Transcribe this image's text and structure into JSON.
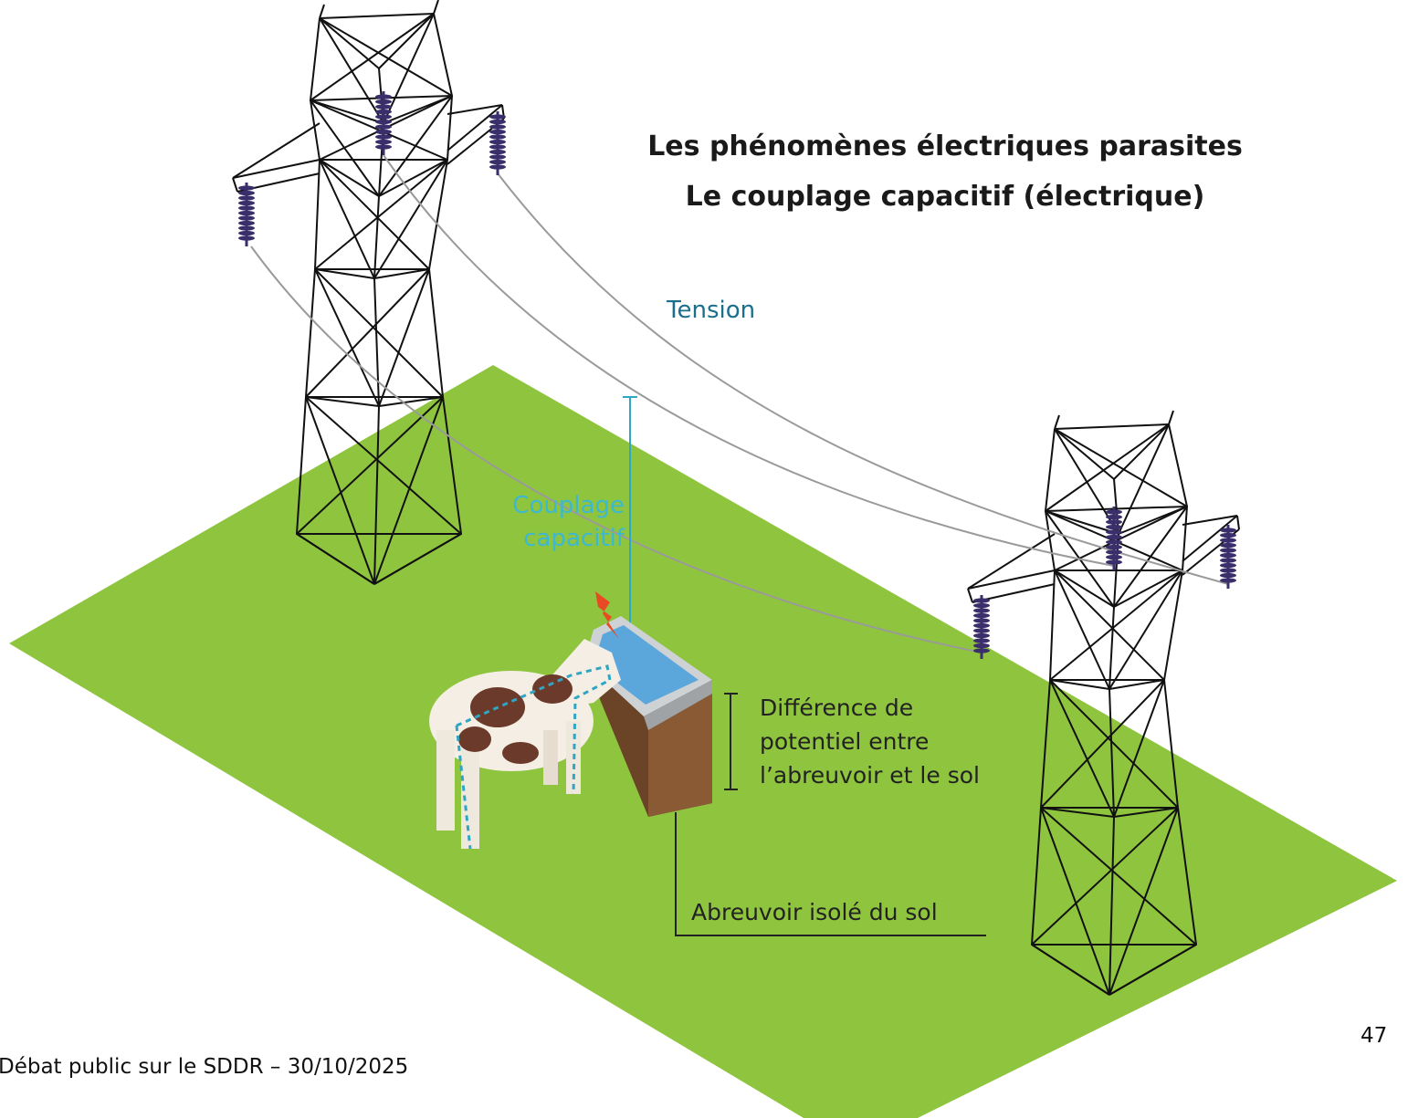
{
  "header": {
    "title_lines": [
      "Les phénomènes électriques parasites",
      "Le couplage capacitif (électrique)"
    ]
  },
  "labels": {
    "tension": "Tension",
    "couplage_lines": [
      "Couplage",
      "capacitif"
    ],
    "difference_lines": [
      "Différence de",
      "potentiel entre",
      "l’abreuvoir et le sol"
    ],
    "abreuvoir": "Abreuvoir isolé du sol"
  },
  "footer": {
    "text": "Débat public sur le SDDR – 30/10/2025",
    "page_number": "47"
  }
}
